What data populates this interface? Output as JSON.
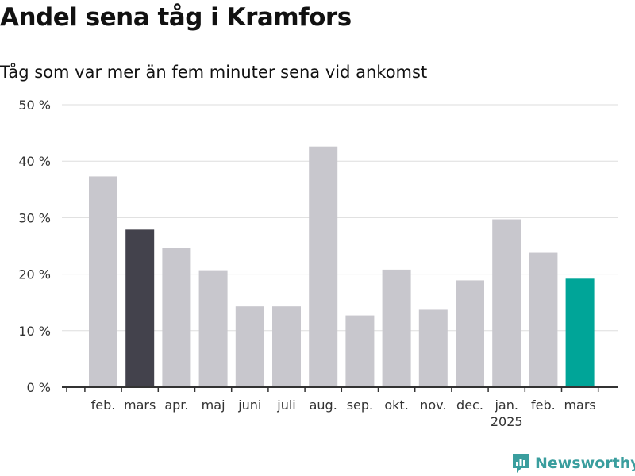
{
  "header": {
    "title": "Andel sena tåg i Kramfors",
    "subtitle": "Tåg som var mer än fem minuter sena vid ankomst"
  },
  "brand": {
    "name": "Newsworthy"
  },
  "chart_data": {
    "type": "bar",
    "categories": [
      "feb.",
      "mars",
      "apr.",
      "maj",
      "juni",
      "juli",
      "aug.",
      "sep.",
      "okt.",
      "nov.",
      "dec.",
      "jan.",
      "feb.",
      "mars"
    ],
    "category_sublabels": [
      "",
      "",
      "",
      "",
      "",
      "",
      "",
      "",
      "",
      "",
      "",
      "2025",
      "",
      ""
    ],
    "values": [
      37.3,
      27.9,
      24.6,
      20.7,
      14.3,
      14.3,
      42.6,
      12.7,
      20.8,
      13.7,
      18.9,
      29.7,
      23.8,
      19.2
    ],
    "bar_colors": [
      "#c8c7cd",
      "#43424c",
      "#c8c7cd",
      "#c8c7cd",
      "#c8c7cd",
      "#c8c7cd",
      "#c8c7cd",
      "#c8c7cd",
      "#c8c7cd",
      "#c8c7cd",
      "#c8c7cd",
      "#c8c7cd",
      "#c8c7cd",
      "#00a598"
    ],
    "yticks": [
      0,
      10,
      20,
      30,
      40,
      50
    ],
    "ytick_labels": [
      "0 %",
      "10 %",
      "20 %",
      "30 %",
      "40 %",
      "50 %"
    ],
    "ylim": [
      0,
      50
    ],
    "grid": true,
    "legend": "none",
    "colors": {
      "gray": "#c8c7cd",
      "dark": "#43424c",
      "accent": "#00a598",
      "grid": "#dddddd",
      "axis": "#333333"
    }
  }
}
